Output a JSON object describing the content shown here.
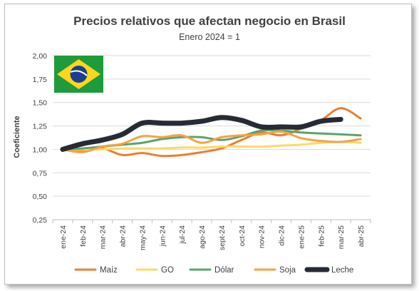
{
  "chart_data": {
    "type": "line",
    "title": "Precios relativos que afectan negocio en Brasil",
    "subtitle": "Enero 2024 = 1",
    "xlabel": "",
    "ylabel": "Coeficiente",
    "ylim": [
      0.25,
      2.0
    ],
    "yticks": [
      "0,25",
      "0,50",
      "0,75",
      "1,00",
      "1,25",
      "1,50",
      "1,75",
      "2,00"
    ],
    "grid": true,
    "legend_position": "bottom",
    "categories": [
      "ene-24",
      "feb-24",
      "mar-24",
      "abr-24",
      "may-24",
      "jun-24",
      "jul-24",
      "ago-24",
      "sept-24",
      "oct-24",
      "nov-24",
      "dic-24",
      "ene-25",
      "feb-25",
      "mar-25",
      "abr-25"
    ],
    "series": [
      {
        "name": "Maíz",
        "color": "#ED7D31",
        "width": 3,
        "values": [
          1.0,
          0.98,
          1.01,
          0.94,
          0.96,
          0.93,
          0.94,
          0.97,
          1.01,
          1.1,
          1.18,
          1.15,
          1.22,
          1.31,
          1.44,
          1.33
        ]
      },
      {
        "name": "GO",
        "color": "#FFD966",
        "width": 3,
        "values": [
          1.0,
          1.0,
          1.0,
          1.01,
          1.01,
          1.01,
          1.02,
          1.02,
          1.03,
          1.03,
          1.03,
          1.04,
          1.05,
          1.07,
          1.08,
          1.07
        ]
      },
      {
        "name": "Dólar",
        "color": "#5BA46E",
        "width": 3,
        "values": [
          1.0,
          1.01,
          1.03,
          1.05,
          1.07,
          1.11,
          1.13,
          1.13,
          1.1,
          1.14,
          1.2,
          1.2,
          1.18,
          1.17,
          1.16,
          1.15
        ]
      },
      {
        "name": "Soja",
        "color": "#F5A342",
        "width": 3,
        "values": [
          1.0,
          0.97,
          1.03,
          1.06,
          1.14,
          1.13,
          1.15,
          1.07,
          1.13,
          1.15,
          1.16,
          1.19,
          1.12,
          1.09,
          1.08,
          1.11
        ]
      },
      {
        "name": "Leche",
        "color": "#262B35",
        "width": 7,
        "values": [
          1.0,
          1.06,
          1.1,
          1.16,
          1.28,
          1.28,
          1.28,
          1.3,
          1.34,
          1.31,
          1.24,
          1.24,
          1.24,
          1.3,
          1.32,
          null
        ]
      }
    ]
  },
  "flag": {
    "name": "brazil-flag",
    "green": "#1E9B3C",
    "yellow": "#FFD51E",
    "blue": "#1B3F8F"
  }
}
